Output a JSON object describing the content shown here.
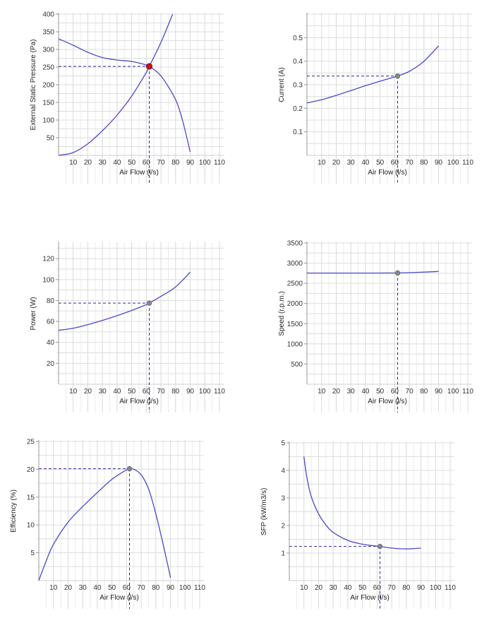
{
  "chart_data": [
    {
      "type": "line",
      "xlabel": "Air Flow (l/s)",
      "ylabel": "External Static Pressure (Pa)",
      "xlim": [
        0,
        110
      ],
      "ylim": [
        0,
        400
      ],
      "xticks": [
        10,
        20,
        30,
        40,
        50,
        60,
        70,
        80,
        90,
        100,
        110
      ],
      "yticks": [
        50,
        100,
        150,
        200,
        250,
        300,
        350,
        400
      ],
      "grid": true,
      "series": [
        {
          "role": "fan curve",
          "color": "#4a4ac8",
          "x": [
            0,
            10,
            20,
            30,
            40,
            50,
            60,
            62,
            70,
            80,
            85,
            90
          ],
          "y": [
            330,
            312,
            292,
            277,
            270,
            266,
            256,
            252,
            225,
            158,
            95,
            10
          ]
        },
        {
          "role": "system curve",
          "color": "#4a4ac8",
          "x": [
            0,
            10,
            20,
            30,
            40,
            50,
            60,
            62,
            70,
            78
          ],
          "y": [
            0,
            8,
            33,
            70,
            114,
            168,
            235,
            252,
            320,
            400
          ]
        }
      ],
      "operating_point": {
        "x": 62,
        "y": 252,
        "color": "#cc1111"
      }
    },
    {
      "type": "line",
      "xlabel": "Air Flow (l/s)",
      "ylabel": "Current (A)",
      "xlim": [
        0,
        110
      ],
      "ylim": [
        0,
        0.6
      ],
      "xticks": [
        10,
        20,
        30,
        40,
        50,
        60,
        70,
        80,
        90,
        100,
        110
      ],
      "yticks": [
        0.1,
        0.2,
        0.3,
        0.4,
        0.5
      ],
      "grid": true,
      "series": [
        {
          "color": "#4a4ac8",
          "x": [
            0,
            10,
            20,
            30,
            40,
            50,
            60,
            62,
            70,
            80,
            90
          ],
          "y": [
            0.223,
            0.236,
            0.255,
            0.275,
            0.296,
            0.315,
            0.333,
            0.337,
            0.357,
            0.4,
            0.465
          ]
        }
      ],
      "operating_point": {
        "x": 62,
        "y": 0.337,
        "color": "#888888"
      }
    },
    {
      "type": "line",
      "xlabel": "Air Flow (l/s)",
      "ylabel": "Power (W)",
      "xlim": [
        0,
        110
      ],
      "ylim": [
        0,
        135
      ],
      "xticks": [
        10,
        20,
        30,
        40,
        50,
        60,
        70,
        80,
        90,
        100,
        110
      ],
      "yticks": [
        20,
        40,
        60,
        80,
        100,
        120
      ],
      "grid": true,
      "series": [
        {
          "color": "#4a4ac8",
          "x": [
            0,
            10,
            20,
            30,
            40,
            50,
            60,
            62,
            70,
            80,
            90
          ],
          "y": [
            51.5,
            53.5,
            57,
            61,
            65.5,
            70.5,
            76,
            77.5,
            84,
            93,
            107
          ]
        }
      ],
      "operating_point": {
        "x": 62,
        "y": 77.5,
        "color": "#888888"
      }
    },
    {
      "type": "line",
      "xlabel": "Air Flow (l/s)",
      "ylabel": "Speed (r.p.m.)",
      "xlim": [
        0,
        110
      ],
      "ylim": [
        0,
        3500
      ],
      "xticks": [
        10,
        20,
        30,
        40,
        50,
        60,
        70,
        80,
        90,
        100,
        110
      ],
      "yticks": [
        500,
        1000,
        1500,
        2000,
        2500,
        3000,
        3500
      ],
      "grid": true,
      "series": [
        {
          "color": "#4a4ac8",
          "x": [
            0,
            10,
            20,
            30,
            40,
            50,
            60,
            62,
            70,
            80,
            90
          ],
          "y": [
            2755,
            2755,
            2755,
            2755,
            2755,
            2755,
            2756,
            2757,
            2765,
            2778,
            2795
          ]
        }
      ],
      "operating_point": {
        "x": 62,
        "y": 2757,
        "color": "#888888"
      }
    },
    {
      "type": "line",
      "xlabel": "Air Flow (l/s)",
      "ylabel": "Efficiency (%)",
      "xlim": [
        0,
        110
      ],
      "ylim": [
        0,
        25
      ],
      "xticks": [
        10,
        20,
        30,
        40,
        50,
        60,
        70,
        80,
        90,
        100,
        110
      ],
      "yticks": [
        5,
        10,
        15,
        20,
        25
      ],
      "grid": true,
      "series": [
        {
          "color": "#4a4ac8",
          "x": [
            0,
            5,
            10,
            20,
            30,
            40,
            50,
            60,
            62,
            65,
            70,
            75,
            80,
            85,
            88,
            90
          ],
          "y": [
            0,
            3.5,
            6.5,
            10.5,
            13.3,
            15.8,
            18.2,
            19.9,
            20.1,
            20.0,
            19.0,
            16.5,
            12.0,
            6.5,
            3.0,
            0.5
          ]
        }
      ],
      "operating_point": {
        "x": 62,
        "y": 20.1,
        "color": "#888888"
      }
    },
    {
      "type": "line",
      "xlabel": "Air Flow (l/s)",
      "ylabel": "SFP (kW/m3/s)",
      "xlim": [
        0,
        110
      ],
      "ylim": [
        0,
        5
      ],
      "xticks": [
        10,
        20,
        30,
        40,
        50,
        60,
        70,
        80,
        90,
        100,
        110
      ],
      "yticks": [
        1,
        2,
        3,
        4,
        5
      ],
      "grid": true,
      "series": [
        {
          "color": "#4a4ac8",
          "x": [
            10,
            12,
            15,
            20,
            25,
            30,
            40,
            50,
            60,
            62,
            70,
            80,
            90
          ],
          "y": [
            4.5,
            3.75,
            3.05,
            2.42,
            2.02,
            1.75,
            1.46,
            1.32,
            1.25,
            1.24,
            1.18,
            1.15,
            1.18
          ]
        }
      ],
      "operating_point": {
        "x": 62,
        "y": 1.24,
        "color": "#888888"
      }
    }
  ]
}
